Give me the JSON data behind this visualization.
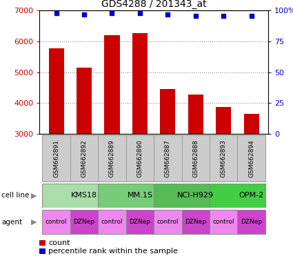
{
  "title": "GDS4288 / 201343_at",
  "samples": [
    "GSM662891",
    "GSM662892",
    "GSM662889",
    "GSM662890",
    "GSM662887",
    "GSM662888",
    "GSM662893",
    "GSM662894"
  ],
  "counts": [
    5780,
    5150,
    6200,
    6280,
    4460,
    4280,
    3880,
    3640
  ],
  "percentile_ranks": [
    98,
    97,
    98,
    98,
    97,
    96,
    96,
    96
  ],
  "ylim_left": [
    3000,
    7000
  ],
  "ylim_right": [
    0,
    100
  ],
  "yticks_left": [
    3000,
    4000,
    5000,
    6000,
    7000
  ],
  "yticks_right": [
    0,
    25,
    50,
    75,
    100
  ],
  "bar_color": "#cc0000",
  "dot_color": "#0000cc",
  "bar_width": 0.55,
  "cell_lines": [
    {
      "name": "KMS18",
      "start": 0,
      "end": 2,
      "color": "#aaddaa"
    },
    {
      "name": "MM.1S",
      "start": 2,
      "end": 4,
      "color": "#77cc77"
    },
    {
      "name": "NCI-H929",
      "start": 4,
      "end": 6,
      "color": "#55bb55"
    },
    {
      "name": "OPM-2",
      "start": 6,
      "end": 8,
      "color": "#44cc44"
    }
  ],
  "agents": [
    "control",
    "DZNep",
    "control",
    "DZNep",
    "control",
    "DZNep",
    "control",
    "DZNep"
  ],
  "agent_color_control": "#ee88ee",
  "agent_color_dznep": "#cc44cc",
  "legend_count_label": "count",
  "legend_pct_label": "percentile rank within the sample",
  "left_axis_color": "#cc0000",
  "right_axis_color": "#0000cc",
  "grid_color": "#888888",
  "sample_box_color": "#cccccc",
  "sample_box_edge": "#999999"
}
